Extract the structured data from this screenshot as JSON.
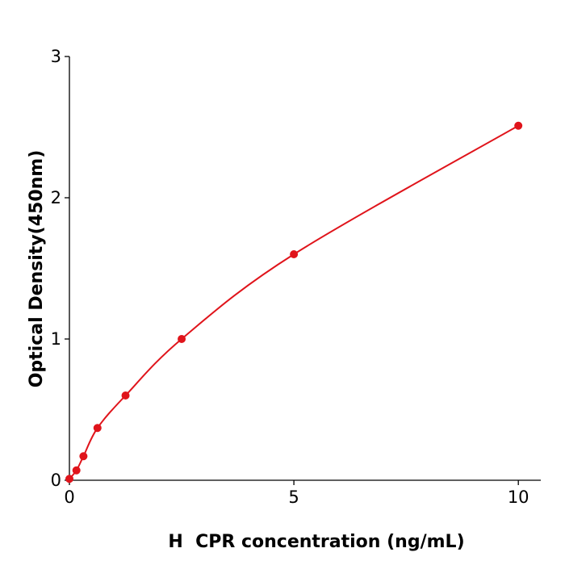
{
  "chart_data": {
    "type": "scatter",
    "xlabel": "H  CPR concentration (ng/mL)",
    "ylabel": "Optical Density(450nm)",
    "series": [
      {
        "color": "#e0141b",
        "x": [
          0,
          0.156,
          0.3125,
          0.625,
          1.25,
          2.5,
          5,
          10
        ],
        "values": [
          0.01,
          0.07,
          0.17,
          0.37,
          0.6,
          1.0,
          1.6,
          2.51
        ]
      }
    ],
    "xlim": [
      0,
      10.5
    ],
    "ylim": [
      0,
      3
    ],
    "xticks": [
      0,
      5,
      10
    ],
    "yticks": [
      0,
      1,
      2,
      3
    ],
    "grid": false
  }
}
